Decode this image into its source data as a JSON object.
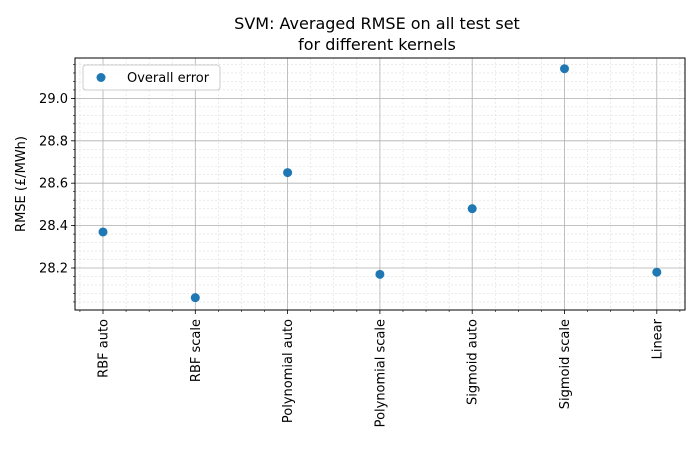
{
  "chart_data": {
    "type": "scatter",
    "title_lines": [
      "SVM: Averaged RMSE on all test set",
      "for different kernels"
    ],
    "xlabel": "",
    "ylabel": "RMSE (£/MWh)",
    "categories": [
      "RBF auto",
      "RBF scale",
      "Polynomial auto",
      "Polynomial scale",
      "Sigmoid auto",
      "Sigmoid scale",
      "Linear"
    ],
    "series": [
      {
        "name": "Overall error",
        "color": "#1f77b4",
        "values": [
          28.37,
          28.06,
          28.65,
          28.17,
          28.48,
          29.14,
          28.18
        ]
      }
    ],
    "ylim": [
      28.0,
      29.2
    ],
    "yticks": [
      28.2,
      28.4,
      28.6,
      28.8,
      29.0
    ],
    "ytick_labels": [
      "28.2",
      "28.4",
      "28.6",
      "28.8",
      "29.0"
    ],
    "grid": true,
    "minor_grid": true,
    "legend_position": "top-left"
  }
}
